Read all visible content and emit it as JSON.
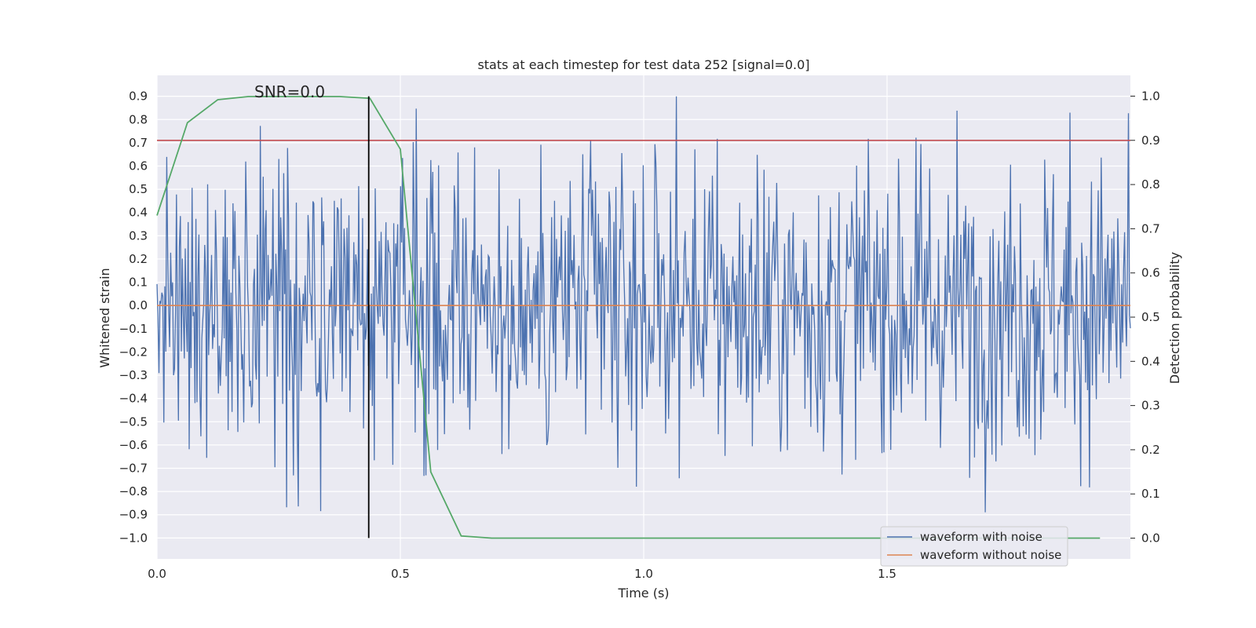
{
  "chart_data": {
    "type": "line",
    "title": "stats at each timestep for test data 252 [signal=0.0]",
    "xlabel": "Time (s)",
    "ylabel": "Whitened strain",
    "y2label": "Detection probability",
    "xlim": [
      0.0,
      2.0
    ],
    "ylim": [
      -1.09,
      0.99
    ],
    "y2lim": [
      -0.047,
      1.047
    ],
    "x_ticks": [
      "0.0",
      "0.5",
      "1.0",
      "1.5"
    ],
    "y_ticks": [
      "0.9",
      "0.8",
      "0.7",
      "0.6",
      "0.5",
      "0.4",
      "0.3",
      "0.2",
      "0.1",
      "0.0",
      "−0.1",
      "−0.2",
      "−0.3",
      "−0.4",
      "−0.5",
      "−0.6",
      "−0.7",
      "−0.8",
      "−0.9",
      "−1.0"
    ],
    "y2_ticks": [
      "1.0",
      "0.9",
      "0.8",
      "0.7",
      "0.6",
      "0.5",
      "0.4",
      "0.3",
      "0.2",
      "0.1",
      "0.0"
    ],
    "grid": true,
    "legend_position": "lower-right",
    "annotation": "SNR=0.0",
    "series": [
      {
        "name": "waveform with noise",
        "color": "#4c72b0",
        "axis": "left",
        "description_stats": {
          "mean": 0.0,
          "std": 0.33,
          "min": -0.97,
          "max": 0.9,
          "n_samples": 1000
        }
      },
      {
        "name": "waveform without noise",
        "color": "#dd8452",
        "axis": "left",
        "x": [
          0.0,
          2.0
        ],
        "y": [
          0.0,
          0.0
        ]
      },
      {
        "name": "",
        "color": "#55a868",
        "axis": "right",
        "x": [
          0.0,
          0.0625,
          0.125,
          0.1875,
          0.25,
          0.3125,
          0.375,
          0.4375,
          0.5,
          0.5625,
          0.625,
          0.6875,
          0.75,
          0.8125,
          0.875,
          0.9375,
          1.0,
          1.0625,
          1.125,
          1.1875,
          1.25,
          1.3125,
          1.375,
          1.4375,
          1.5,
          1.5625,
          1.625,
          1.6875,
          1.75,
          1.8125,
          1.875,
          1.9375
        ],
        "y": [
          0.73,
          0.94,
          0.992,
          0.999,
          0.999,
          0.999,
          0.999,
          0.995,
          0.88,
          0.15,
          0.005,
          0.0,
          0.0,
          0.0,
          0.0,
          0.0,
          0.0,
          0.0,
          0.0,
          0.0,
          0.0,
          0.0,
          0.0,
          0.0,
          0.0,
          0.0,
          0.0,
          0.0,
          0.0,
          0.0,
          0.0,
          0.0
        ]
      }
    ],
    "threshold_line": {
      "color": "#c44e52",
      "axis": "right",
      "y": 0.9
    },
    "marker_line": {
      "color": "#000000",
      "axis": "left",
      "x": 0.435,
      "y_range": [
        -1.0,
        0.9
      ]
    }
  }
}
